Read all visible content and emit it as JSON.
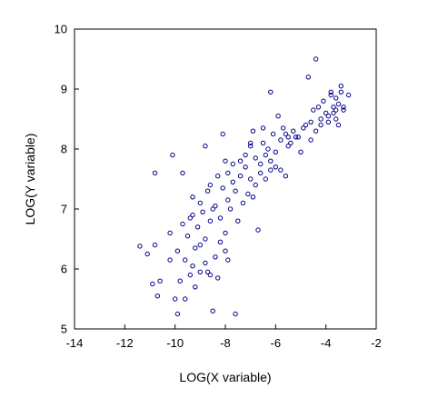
{
  "chart_data": {
    "type": "scatter",
    "title": "",
    "xlabel": "LOG(X variable)",
    "ylabel": "LOG(Y variable)",
    "xlim": [
      -14,
      -2
    ],
    "ylim": [
      5,
      10
    ],
    "xticks": [
      -14,
      -12,
      -10,
      -8,
      -6,
      -4,
      -2
    ],
    "yticks": [
      5,
      6,
      7,
      8,
      9,
      10
    ],
    "grid": false,
    "legend": "none",
    "marker": "hollow-circle",
    "marker_color": "#00008B",
    "series": [
      {
        "points": [
          [
            -11.4,
            6.38
          ],
          [
            -11.1,
            6.25
          ],
          [
            -10.9,
            5.75
          ],
          [
            -10.8,
            6.4
          ],
          [
            -10.7,
            5.55
          ],
          [
            -10.6,
            5.8
          ],
          [
            -10.2,
            6.15
          ],
          [
            -10.0,
            5.5
          ],
          [
            -9.9,
            5.25
          ],
          [
            -9.8,
            5.8
          ],
          [
            -9.6,
            5.5
          ],
          [
            -9.4,
            5.9
          ],
          [
            -9.2,
            5.7
          ],
          [
            -9.0,
            5.95
          ],
          [
            -8.8,
            6.1
          ],
          [
            -8.6,
            5.9
          ],
          [
            -8.5,
            5.3
          ],
          [
            -9.6,
            6.15
          ],
          [
            -9.2,
            6.35
          ],
          [
            -9.5,
            6.55
          ],
          [
            -9.0,
            6.4
          ],
          [
            -8.8,
            6.5
          ],
          [
            -8.4,
            6.2
          ],
          [
            -8.2,
            6.45
          ],
          [
            -8.0,
            6.3
          ],
          [
            -7.9,
            6.15
          ],
          [
            -7.6,
            5.25
          ],
          [
            -9.7,
            6.75
          ],
          [
            -9.4,
            6.85
          ],
          [
            -9.3,
            6.9
          ],
          [
            -9.1,
            6.7
          ],
          [
            -8.9,
            6.95
          ],
          [
            -8.6,
            6.8
          ],
          [
            -8.4,
            7.05
          ],
          [
            -8.2,
            6.85
          ],
          [
            -8.0,
            6.6
          ],
          [
            -7.8,
            7.0
          ],
          [
            -7.5,
            6.8
          ],
          [
            -9.0,
            7.1
          ],
          [
            -8.7,
            7.3
          ],
          [
            -8.5,
            7.0
          ],
          [
            -8.1,
            7.35
          ],
          [
            -7.9,
            7.15
          ],
          [
            -7.6,
            7.3
          ],
          [
            -7.3,
            7.1
          ],
          [
            -7.1,
            7.25
          ],
          [
            -6.9,
            7.2
          ],
          [
            -6.7,
            6.65
          ],
          [
            -8.3,
            7.55
          ],
          [
            -7.9,
            7.6
          ],
          [
            -7.7,
            7.45
          ],
          [
            -7.4,
            7.55
          ],
          [
            -7.2,
            7.7
          ],
          [
            -7.0,
            7.5
          ],
          [
            -6.8,
            7.4
          ],
          [
            -6.6,
            7.6
          ],
          [
            -6.4,
            7.5
          ],
          [
            -6.2,
            7.65
          ],
          [
            -8.0,
            7.8
          ],
          [
            -7.7,
            7.75
          ],
          [
            -7.4,
            7.8
          ],
          [
            -7.2,
            7.9
          ],
          [
            -7.0,
            8.05
          ],
          [
            -6.8,
            7.85
          ],
          [
            -6.6,
            7.75
          ],
          [
            -6.4,
            7.9
          ],
          [
            -6.2,
            7.8
          ],
          [
            -6.0,
            7.7
          ],
          [
            -5.8,
            7.65
          ],
          [
            -5.6,
            7.55
          ],
          [
            -6.9,
            8.3
          ],
          [
            -6.5,
            8.1
          ],
          [
            -6.3,
            8.0
          ],
          [
            -6.0,
            7.95
          ],
          [
            -5.8,
            8.15
          ],
          [
            -5.6,
            8.25
          ],
          [
            -5.4,
            8.1
          ],
          [
            -5.2,
            8.2
          ],
          [
            -5.0,
            7.95
          ],
          [
            -6.2,
            8.95
          ],
          [
            -5.9,
            8.55
          ],
          [
            -5.7,
            8.35
          ],
          [
            -5.5,
            8.2
          ],
          [
            -5.3,
            8.3
          ],
          [
            -4.8,
            8.4
          ],
          [
            -4.6,
            8.45
          ],
          [
            -4.4,
            8.3
          ],
          [
            -4.2,
            8.5
          ],
          [
            -4.0,
            8.6
          ],
          [
            -3.9,
            8.55
          ],
          [
            -3.7,
            8.7
          ],
          [
            -3.6,
            8.5
          ],
          [
            -3.5,
            8.75
          ],
          [
            -3.3,
            8.65
          ],
          [
            -4.3,
            8.7
          ],
          [
            -4.1,
            8.8
          ],
          [
            -3.8,
            8.9
          ],
          [
            -3.6,
            8.85
          ],
          [
            -3.4,
            8.95
          ],
          [
            -3.1,
            8.9
          ],
          [
            -4.5,
            8.65
          ],
          [
            -4.2,
            8.4
          ],
          [
            -3.9,
            8.45
          ],
          [
            -3.7,
            8.6
          ],
          [
            -3.5,
            8.4
          ],
          [
            -4.7,
            9.2
          ],
          [
            -4.4,
            9.5
          ],
          [
            -3.8,
            8.95
          ],
          [
            -3.4,
            9.05
          ],
          [
            -3.3,
            8.7
          ],
          [
            -7.0,
            8.1
          ],
          [
            -6.5,
            8.35
          ],
          [
            -6.1,
            8.25
          ],
          [
            -5.5,
            8.05
          ],
          [
            -5.1,
            8.2
          ],
          [
            -4.9,
            8.35
          ],
          [
            -4.6,
            8.15
          ],
          [
            -3.6,
            8.65
          ],
          [
            -8.8,
            8.05
          ],
          [
            -8.1,
            8.25
          ],
          [
            -10.8,
            7.6
          ],
          [
            -10.1,
            7.9
          ],
          [
            -9.7,
            7.6
          ],
          [
            -9.3,
            7.2
          ],
          [
            -8.6,
            7.4
          ],
          [
            -10.2,
            6.6
          ],
          [
            -9.9,
            6.3
          ],
          [
            -9.3,
            6.05
          ],
          [
            -8.7,
            5.95
          ],
          [
            -8.3,
            5.85
          ]
        ]
      }
    ]
  }
}
